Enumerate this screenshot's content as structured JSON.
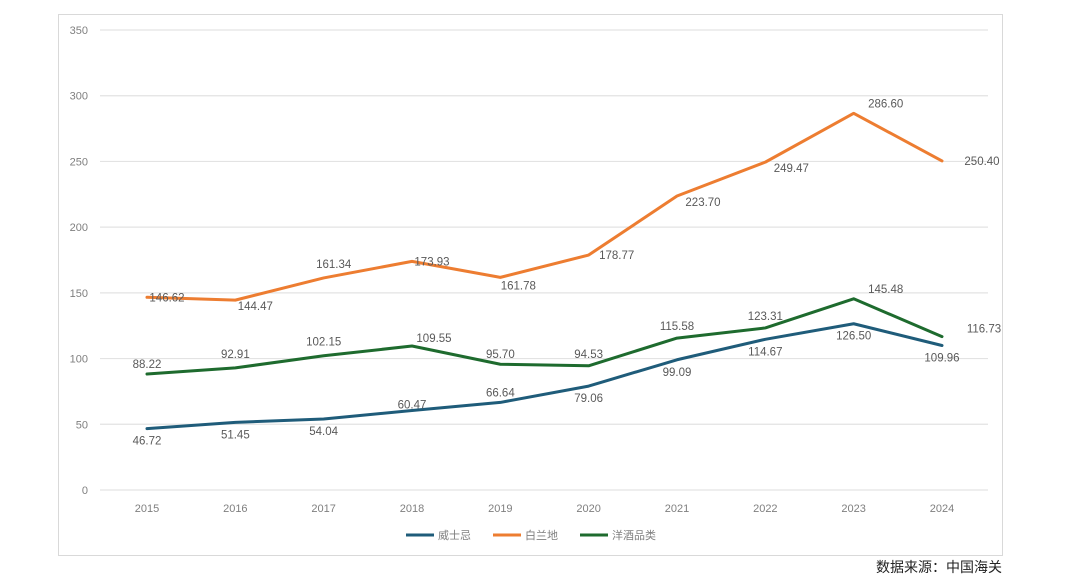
{
  "source_note": "数据来源：中国海关",
  "chart_data": {
    "type": "line",
    "title": "",
    "xlabel": "",
    "ylabel": "",
    "categories": [
      "2015",
      "2016",
      "2017",
      "2018",
      "2019",
      "2020",
      "2021",
      "2022",
      "2023",
      "2024"
    ],
    "ylim": [
      0,
      350
    ],
    "yticks": [
      0,
      50,
      100,
      150,
      200,
      250,
      300,
      350
    ],
    "grid": true,
    "legend_position": "bottom",
    "series": [
      {
        "name": "威士忌",
        "color": "#1f5c7a",
        "values": [
          46.72,
          51.45,
          54.04,
          60.47,
          66.64,
          79.06,
          99.09,
          114.67,
          126.5,
          109.96
        ],
        "labels": [
          "46.72",
          "51.45",
          "54.04",
          "60.47",
          "66.64",
          "79.06",
          "99.09",
          "114.67",
          "126.50",
          "109.96"
        ]
      },
      {
        "name": "白兰地",
        "color": "#ed7d31",
        "values": [
          146.62,
          144.47,
          161.34,
          173.93,
          161.78,
          178.77,
          223.7,
          249.47,
          286.6,
          250.4
        ],
        "labels": [
          "146.62",
          "144.47",
          "161.34",
          "173.93",
          "161.78",
          "178.77",
          "223.70",
          "249.47",
          "286.60",
          "250.40"
        ]
      },
      {
        "name": "洋酒品类",
        "color": "#1e6b2e",
        "values": [
          88.22,
          92.91,
          102.15,
          109.55,
          95.7,
          94.53,
          115.58,
          123.31,
          145.48,
          116.73
        ],
        "labels": [
          "88.22",
          "92.91",
          "102.15",
          "109.55",
          "95.70",
          "94.53",
          "115.58",
          "123.31",
          "145.48",
          "116.73"
        ]
      }
    ]
  }
}
